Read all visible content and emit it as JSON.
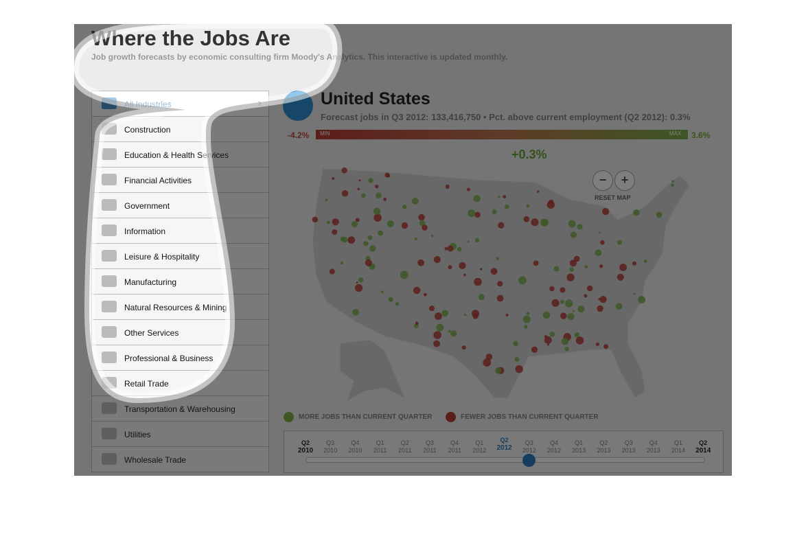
{
  "header": {
    "title": "Where the Jobs Are",
    "subtitle": "Job growth forecasts by economic consulting firm Moody's Analytics. This interactive is updated monthly."
  },
  "industries": [
    "All Industries",
    "Construction",
    "Education & Health Services",
    "Financial Activities",
    "Government",
    "Information",
    "Leisure & Hospitality",
    "Manufacturing",
    "Natural Resources & Mining",
    "Other Services",
    "Professional & Business",
    "Retail Trade",
    "Transportation & Warehousing",
    "Utilities",
    "Wholesale Trade"
  ],
  "location": {
    "title": "United States",
    "forecast": "Forecast jobs in Q3 2012: 133,416,750 • Pct. above current employment (Q2 2012): 0.3%"
  },
  "scale": {
    "min_value": "-4.2%",
    "max_value": "3.6%",
    "min_label": "MIN",
    "max_label": "MAX",
    "current": "+0.3%"
  },
  "map_controls": {
    "zoom_out": "−",
    "zoom_in": "+",
    "reset": "RESET MAP"
  },
  "legend": {
    "more": "MORE JOBS THAN CURRENT QUARTER",
    "fewer": "FEWER JOBS THAN CURRENT QUARTER"
  },
  "timeline": [
    {
      "q": "Q2",
      "year": "2010"
    },
    {
      "q": "Q3",
      "year": "2010"
    },
    {
      "q": "Q4",
      "year": "2010"
    },
    {
      "q": "Q1",
      "year": "2011"
    },
    {
      "q": "Q2",
      "year": "2011"
    },
    {
      "q": "Q3",
      "year": "2011"
    },
    {
      "q": "Q4",
      "year": "2011"
    },
    {
      "q": "Q1",
      "year": "2012"
    },
    {
      "q": "Q2",
      "year": "2012"
    },
    {
      "q": "Q3",
      "year": "2012"
    },
    {
      "q": "Q4",
      "year": "2012"
    },
    {
      "q": "Q1",
      "year": "2013"
    },
    {
      "q": "Q2",
      "year": "2013"
    },
    {
      "q": "Q3",
      "year": "2013"
    },
    {
      "q": "Q4",
      "year": "2013"
    },
    {
      "q": "Q1",
      "year": "2014"
    },
    {
      "q": "Q2",
      "year": "2014"
    }
  ]
}
